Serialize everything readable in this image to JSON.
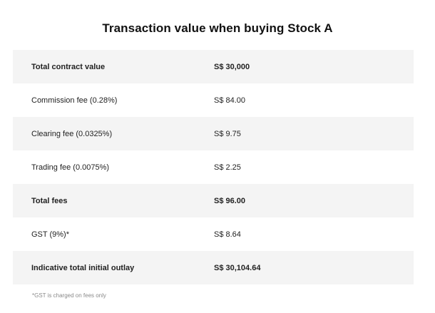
{
  "title": "Transaction value when buying Stock A",
  "rows": [
    {
      "label": "Total contract value",
      "value": "S$ 30,000",
      "bold": true,
      "shaded": true
    },
    {
      "label": "Commission fee (0.28%)",
      "value": "S$ 84.00",
      "bold": false,
      "shaded": false
    },
    {
      "label": "Clearing fee (0.0325%)",
      "value": "S$ 9.75",
      "bold": false,
      "shaded": true
    },
    {
      "label": "Trading fee (0.0075%)",
      "value": "S$ 2.25",
      "bold": false,
      "shaded": false
    },
    {
      "label": "Total fees",
      "value": "S$ 96.00",
      "bold": true,
      "shaded": true
    },
    {
      "label": "GST (9%)*",
      "value": "S$ 8.64",
      "bold": false,
      "shaded": false
    },
    {
      "label": "Indicative total initial outlay",
      "value": "S$ 30,104.64",
      "bold": true,
      "shaded": true
    }
  ],
  "footnote": "*GST is charged on fees only",
  "colors": {
    "row_shade": "#f4f4f4",
    "text": "#222222",
    "footnote": "#8a8a8a"
  }
}
